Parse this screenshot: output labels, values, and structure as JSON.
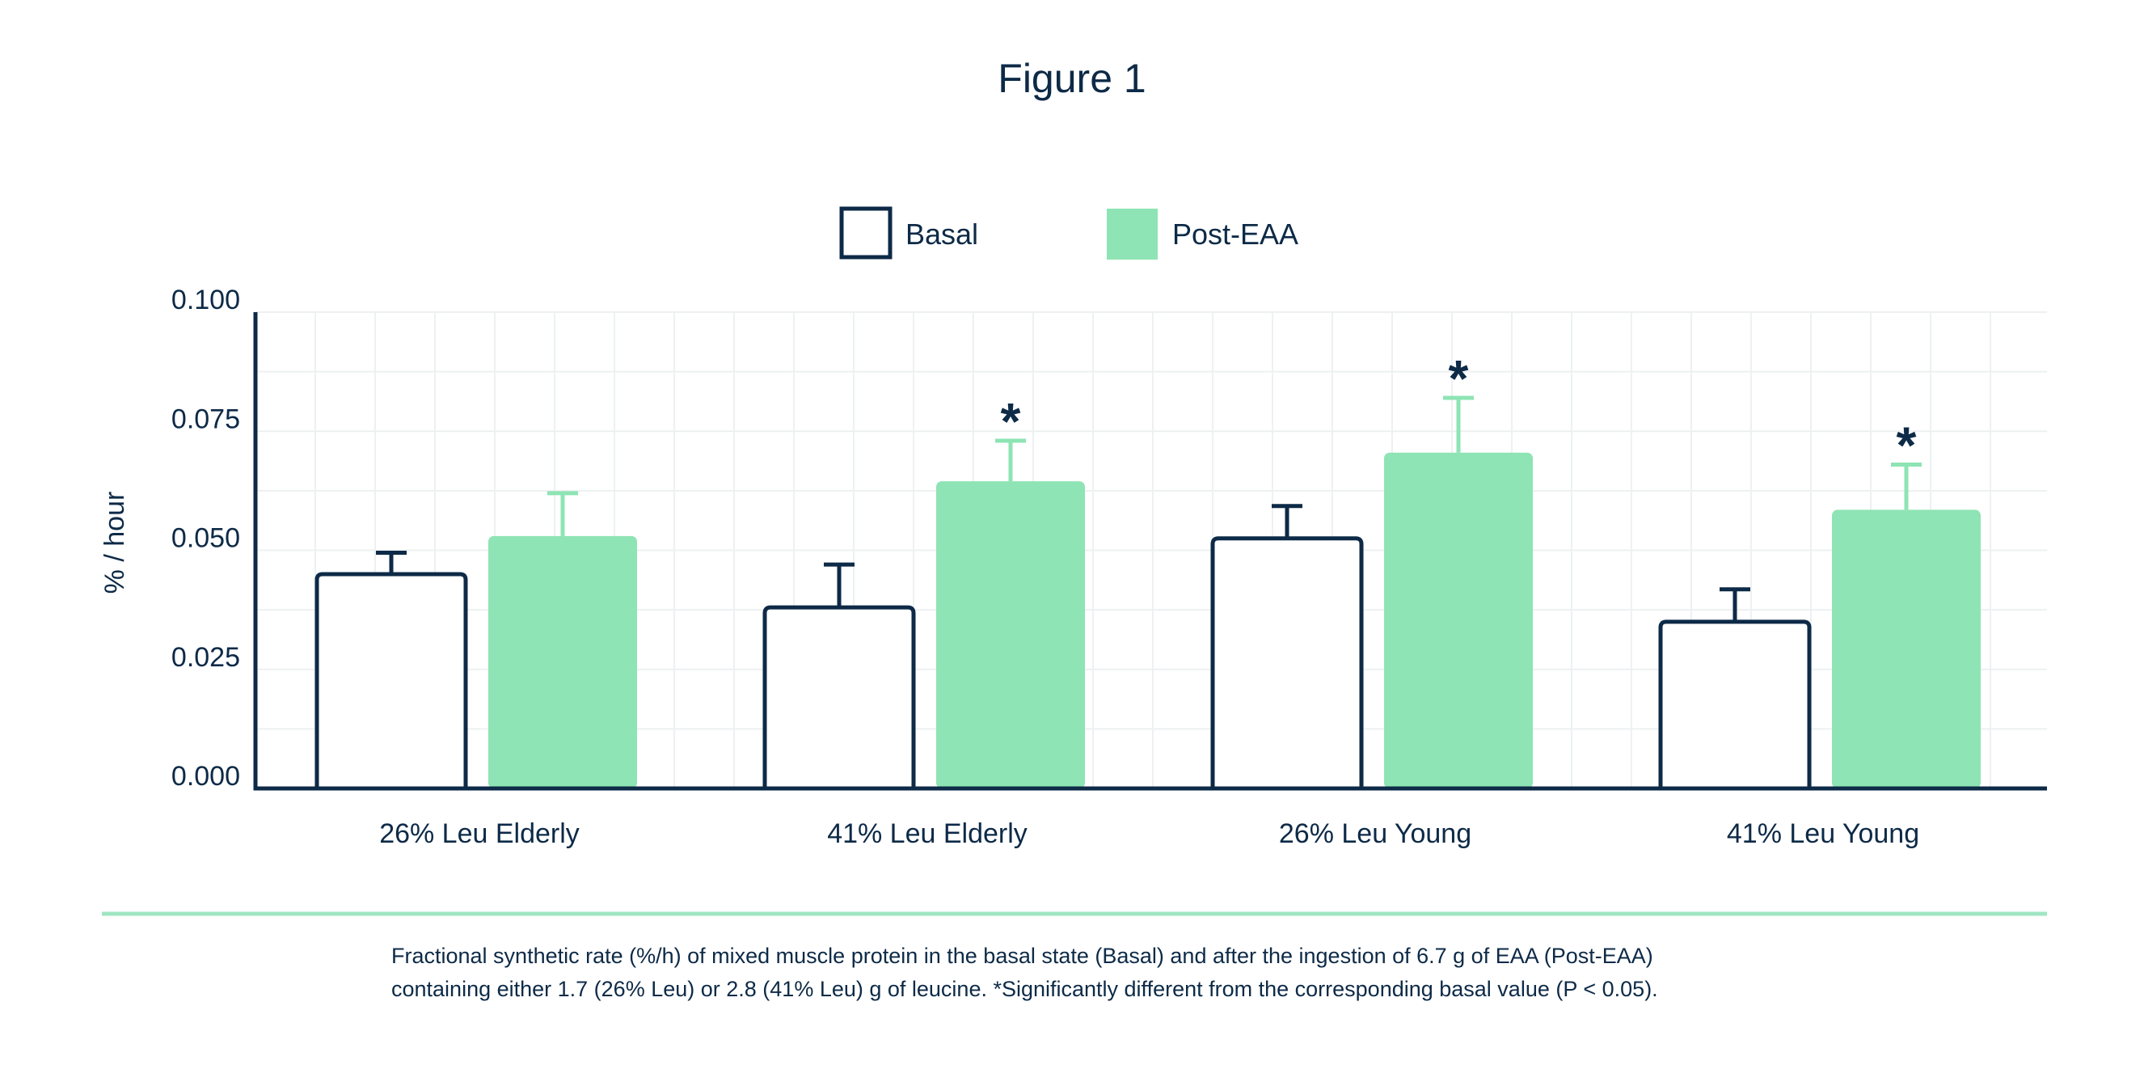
{
  "colors": {
    "ink": "#0d2a47",
    "post_fill": "#8ee4b4",
    "post_err": "#8ee4b4",
    "divider": "#9fe6c2",
    "grid": "#edf1f1"
  },
  "caption": {
    "line1": "Fractional synthetic rate (%/h) of mixed muscle protein in the basal state (Basal) and after the ingestion of 6.7 g of EAA (Post-EAA)",
    "line2": "containing either 1.7 (26% Leu) or 2.8 (41% Leu) g of leucine. *Significantly different from the corresponding basal value (P < 0.05)."
  },
  "chart_data": {
    "type": "bar",
    "title": "Figure 1",
    "ylabel": "% / hour",
    "xlabel": "",
    "ylim": [
      0,
      0.1
    ],
    "yticks": [
      "0.000",
      "0.025",
      "0.050",
      "0.075",
      "0.100"
    ],
    "grid": true,
    "legend_position": "top-center",
    "categories": [
      "26% Leu Elderly",
      "41% Leu Elderly",
      "26% Leu Young",
      "41% Leu Young"
    ],
    "series": [
      {
        "name": "Basal",
        "style": "outline",
        "values": [
          0.045,
          0.038,
          0.0525,
          0.035
        ],
        "errors": [
          0.0045,
          0.009,
          0.0068,
          0.0068
        ],
        "significant": [
          false,
          false,
          false,
          false
        ]
      },
      {
        "name": "Post-EAA",
        "style": "filled",
        "values": [
          0.053,
          0.0645,
          0.0705,
          0.0585
        ],
        "errors": [
          0.009,
          0.0085,
          0.0115,
          0.0095
        ],
        "significant": [
          false,
          true,
          true,
          true
        ]
      }
    ],
    "significance_marker": "*"
  }
}
